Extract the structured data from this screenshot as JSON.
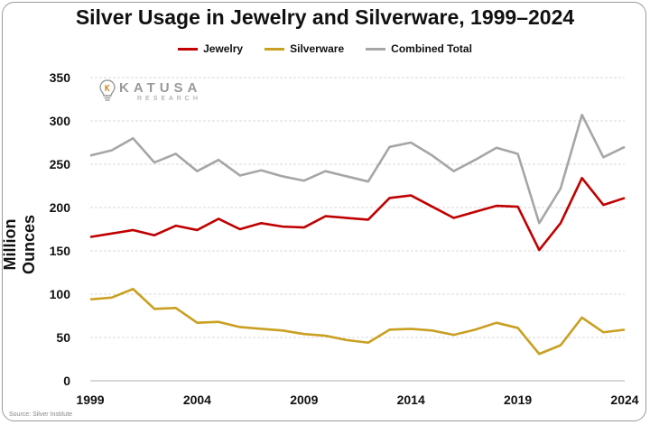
{
  "chart_data": {
    "type": "line",
    "title": "Silver Usage in Jewelry and Silverware, 1999–2024",
    "ylabel": "Million Ounces",
    "xlabel": "",
    "x": [
      1999,
      2000,
      2001,
      2002,
      2003,
      2004,
      2005,
      2006,
      2007,
      2008,
      2009,
      2010,
      2011,
      2012,
      2013,
      2014,
      2015,
      2016,
      2017,
      2018,
      2019,
      2020,
      2021,
      2022,
      2023,
      2024
    ],
    "x_ticks": [
      1999,
      2004,
      2009,
      2014,
      2019,
      2024
    ],
    "ylim": [
      0,
      350
    ],
    "y_ticks": [
      0,
      50,
      100,
      150,
      200,
      250,
      300,
      350
    ],
    "grid": true,
    "legend_position": "top-center",
    "series": [
      {
        "name": "Jewelry",
        "color": "#c00000",
        "values": [
          166,
          170,
          174,
          168,
          179,
          174,
          187,
          175,
          182,
          178,
          177,
          190,
          188,
          186,
          211,
          214,
          201,
          188,
          195,
          202,
          201,
          151,
          182,
          234,
          203,
          211
        ]
      },
      {
        "name": "Silverware",
        "color": "#c9a021",
        "values": [
          94,
          96,
          106,
          83,
          84,
          67,
          68,
          62,
          60,
          58,
          54,
          52,
          47,
          44,
          59,
          60,
          58,
          53,
          59,
          67,
          61,
          31,
          41,
          73,
          56,
          59
        ]
      },
      {
        "name": "Combined Total",
        "color": "#a6a6a6",
        "values": [
          260,
          266,
          280,
          252,
          262,
          242,
          255,
          237,
          243,
          236,
          231,
          242,
          236,
          230,
          270,
          275,
          260,
          242,
          255,
          269,
          262,
          182,
          222,
          307,
          258,
          270
        ]
      }
    ]
  },
  "logo": {
    "name": "KATUSA",
    "sub": "RESEARCH"
  },
  "source": "Source: Silver Institute"
}
